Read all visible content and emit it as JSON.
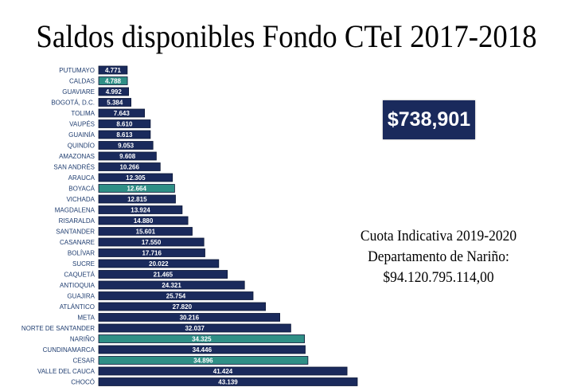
{
  "title": "Saldos disponibles Fondo CTeI 2017-2018",
  "total_box": "$738,901",
  "quota": {
    "line1": "Cuota Indicativa 2019-2020",
    "line2": "Departamento de Nariño:",
    "line3": "$94.120.795.114,00"
  },
  "colors": {
    "bar": "#1a2a5c",
    "bar_highlight": "#2f8f86",
    "bar_text": "#ffffff",
    "label_text": "#1f3d70"
  },
  "chart_data": {
    "type": "bar",
    "orientation": "horizontal",
    "title": "Saldos disponibles Fondo CTeI 2017-2018",
    "categories": [
      "PUTUMAYO",
      "CALDAS",
      "GUAVIARE",
      "BOGOTÁ, D.C.",
      "TOLIMA",
      "VAUPÉS",
      "GUAINÍA",
      "QUINDÍO",
      "AMAZONAS",
      "SAN ANDRÉS",
      "ARAUCA",
      "BOYACÁ",
      "VICHADA",
      "MAGDALENA",
      "RISARALDA",
      "SANTANDER",
      "CASANARE",
      "BOLÍVAR",
      "SUCRE",
      "CAQUETÁ",
      "ANTIOQUIA",
      "GUAJIRA",
      "ATLÁNTICO",
      "META",
      "NORTE DE SANTANDER",
      "NARIÑO",
      "CUNDINAMARCA",
      "CESAR",
      "VALLE DEL CAUCA",
      "CHOCÓ"
    ],
    "values": [
      4771,
      4788,
      4992,
      5384,
      7643,
      8610,
      8613,
      9053,
      9608,
      10266,
      12305,
      12664,
      12815,
      13924,
      14880,
      15601,
      17550,
      17716,
      20022,
      21465,
      24321,
      25754,
      27820,
      30216,
      32037,
      34325,
      34446,
      34896,
      41424,
      43139
    ],
    "value_labels": [
      "4.771",
      "4.788",
      "4.992",
      "5.384",
      "7.643",
      "8.610",
      "8.613",
      "9.053",
      "9.608",
      "10.266",
      "12.305",
      "12.664",
      "12.815",
      "13.924",
      "14.880",
      "15.601",
      "17.550",
      "17.716",
      "20.022",
      "21.465",
      "24.321",
      "25.754",
      "27.820",
      "30.216",
      "32.037",
      "34.325",
      "34.446",
      "34.896",
      "41.424",
      "43.139"
    ],
    "highlighted": [
      "CALDAS",
      "BOYACÁ",
      "NARIÑO",
      "CESAR"
    ],
    "xlim": [
      0,
      43139
    ],
    "grid": false,
    "legend": "none"
  }
}
